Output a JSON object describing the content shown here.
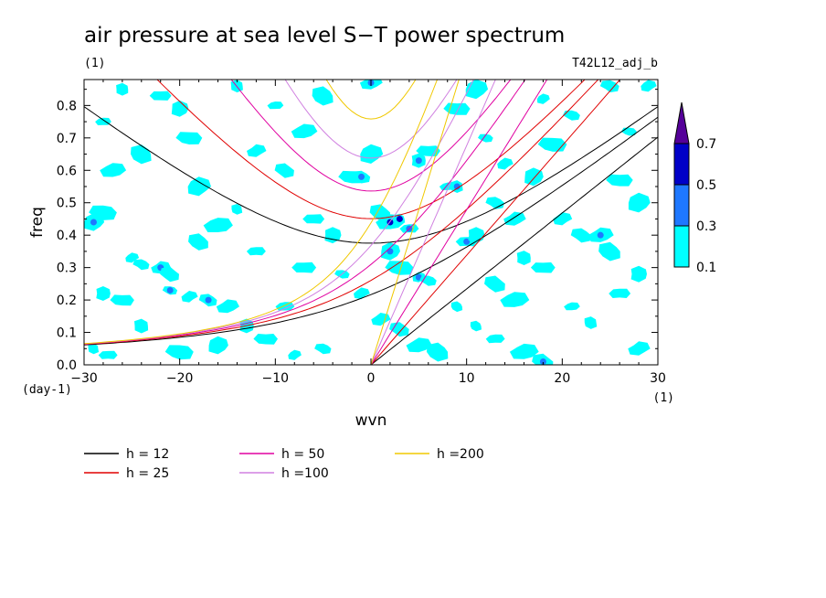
{
  "chart_data": {
    "type": "heatmap",
    "title": "air pressure at sea level S−T power spectrum",
    "subtitle": "(1)",
    "run_label": "T42L12_adj_b",
    "xlabel": "wvn",
    "ylabel": "freq",
    "x_unit": "(1)",
    "y_unit": "(day-1)",
    "xlim": [
      -30,
      30
    ],
    "ylim": [
      0,
      0.88
    ],
    "xticks": [
      -30,
      -20,
      -10,
      0,
      10,
      20,
      30
    ],
    "xtick_labels": [
      "−30",
      "−20",
      "−10",
      "0",
      "10",
      "20",
      "30"
    ],
    "yticks": [
      0,
      0.1,
      0.2,
      0.3,
      0.4,
      0.5,
      0.6,
      0.7,
      0.8
    ],
    "ytick_labels": [
      "0.0",
      "0.1",
      "0.2",
      "0.3",
      "0.4",
      "0.5",
      "0.6",
      "0.7",
      "0.8"
    ],
    "colorbar": {
      "levels": [
        0.1,
        0.3,
        0.5,
        0.7
      ],
      "labels": [
        "0.1",
        "0.3",
        "0.5",
        "0.7"
      ],
      "colors": [
        "#00ffff",
        "#1f78ff",
        "#0000c8",
        "#550099"
      ]
    },
    "patches": [
      {
        "x": -29,
        "y": 0.05,
        "level": 1
      },
      {
        "x": -27.5,
        "y": 0.03,
        "level": 1
      },
      {
        "x": -28,
        "y": 0.22,
        "level": 1
      },
      {
        "x": -26,
        "y": 0.2,
        "level": 1
      },
      {
        "x": -29,
        "y": 0.44,
        "level": 2
      },
      {
        "x": -28,
        "y": 0.47,
        "level": 1
      },
      {
        "x": -25,
        "y": 0.33,
        "level": 1
      },
      {
        "x": -24,
        "y": 0.31,
        "level": 1
      },
      {
        "x": -22,
        "y": 0.3,
        "level": 2
      },
      {
        "x": -21,
        "y": 0.28,
        "level": 1
      },
      {
        "x": -27,
        "y": 0.6,
        "level": 1
      },
      {
        "x": -24,
        "y": 0.65,
        "level": 1
      },
      {
        "x": -28,
        "y": 0.75,
        "level": 1
      },
      {
        "x": -26,
        "y": 0.85,
        "level": 1
      },
      {
        "x": -22,
        "y": 0.83,
        "level": 1
      },
      {
        "x": -20,
        "y": 0.79,
        "level": 1
      },
      {
        "x": -19,
        "y": 0.7,
        "level": 1
      },
      {
        "x": -18,
        "y": 0.55,
        "level": 1
      },
      {
        "x": -21,
        "y": 0.23,
        "level": 2
      },
      {
        "x": -19,
        "y": 0.21,
        "level": 1
      },
      {
        "x": -17,
        "y": 0.2,
        "level": 2
      },
      {
        "x": -15,
        "y": 0.18,
        "level": 1
      },
      {
        "x": -18,
        "y": 0.38,
        "level": 1
      },
      {
        "x": -16,
        "y": 0.43,
        "level": 1
      },
      {
        "x": -14,
        "y": 0.48,
        "level": 1
      },
      {
        "x": -12,
        "y": 0.35,
        "level": 1
      },
      {
        "x": -13,
        "y": 0.12,
        "level": 1
      },
      {
        "x": -11,
        "y": 0.08,
        "level": 1
      },
      {
        "x": -16,
        "y": 0.06,
        "level": 1
      },
      {
        "x": -20,
        "y": 0.04,
        "level": 1
      },
      {
        "x": -8,
        "y": 0.03,
        "level": 1
      },
      {
        "x": -5,
        "y": 0.05,
        "level": 1
      },
      {
        "x": -12,
        "y": 0.66,
        "level": 1
      },
      {
        "x": -9,
        "y": 0.6,
        "level": 1
      },
      {
        "x": -7,
        "y": 0.72,
        "level": 1
      },
      {
        "x": -5,
        "y": 0.83,
        "level": 1
      },
      {
        "x": -10,
        "y": 0.8,
        "level": 1
      },
      {
        "x": -14,
        "y": 0.86,
        "level": 1
      },
      {
        "x": -6,
        "y": 0.45,
        "level": 1
      },
      {
        "x": -4,
        "y": 0.4,
        "level": 1
      },
      {
        "x": -2,
        "y": 0.58,
        "level": 1
      },
      {
        "x": 0,
        "y": 0.65,
        "level": 1
      },
      {
        "x": -3,
        "y": 0.28,
        "level": 1
      },
      {
        "x": -1,
        "y": 0.22,
        "level": 1
      },
      {
        "x": -1,
        "y": 0.58,
        "level": 2
      },
      {
        "x": 0,
        "y": 0.87,
        "level": 2
      },
      {
        "x": 1,
        "y": 0.47,
        "level": 1
      },
      {
        "x": 2,
        "y": 0.44,
        "level": 3
      },
      {
        "x": 3,
        "y": 0.45,
        "level": 3
      },
      {
        "x": 4,
        "y": 0.42,
        "level": 2
      },
      {
        "x": 5,
        "y": 0.63,
        "level": 2
      },
      {
        "x": 6,
        "y": 0.66,
        "level": 1
      },
      {
        "x": 2,
        "y": 0.35,
        "level": 2
      },
      {
        "x": 3,
        "y": 0.3,
        "level": 1
      },
      {
        "x": 5,
        "y": 0.27,
        "level": 2
      },
      {
        "x": 6,
        "y": 0.26,
        "level": 1
      },
      {
        "x": 1,
        "y": 0.14,
        "level": 1
      },
      {
        "x": 3,
        "y": 0.11,
        "level": 1
      },
      {
        "x": 5,
        "y": 0.06,
        "level": 1
      },
      {
        "x": 7,
        "y": 0.04,
        "level": 1
      },
      {
        "x": 8,
        "y": 0.55,
        "level": 1
      },
      {
        "x": 9,
        "y": 0.55,
        "level": 2
      },
      {
        "x": 10,
        "y": 0.38,
        "level": 2
      },
      {
        "x": 11,
        "y": 0.4,
        "level": 1
      },
      {
        "x": 9,
        "y": 0.79,
        "level": 1
      },
      {
        "x": 11,
        "y": 0.85,
        "level": 1
      },
      {
        "x": 12,
        "y": 0.7,
        "level": 1
      },
      {
        "x": 14,
        "y": 0.62,
        "level": 1
      },
      {
        "x": 13,
        "y": 0.5,
        "level": 1
      },
      {
        "x": 15,
        "y": 0.45,
        "level": 1
      },
      {
        "x": 13,
        "y": 0.25,
        "level": 1
      },
      {
        "x": 15,
        "y": 0.2,
        "level": 1
      },
      {
        "x": 11,
        "y": 0.12,
        "level": 1
      },
      {
        "x": 13,
        "y": 0.08,
        "level": 1
      },
      {
        "x": 16,
        "y": 0.33,
        "level": 1
      },
      {
        "x": 18,
        "y": 0.3,
        "level": 1
      },
      {
        "x": 17,
        "y": 0.58,
        "level": 1
      },
      {
        "x": 19,
        "y": 0.68,
        "level": 1
      },
      {
        "x": 18,
        "y": 0.82,
        "level": 1
      },
      {
        "x": 21,
        "y": 0.77,
        "level": 1
      },
      {
        "x": 20,
        "y": 0.45,
        "level": 1
      },
      {
        "x": 22,
        "y": 0.4,
        "level": 1
      },
      {
        "x": 24,
        "y": 0.4,
        "level": 2
      },
      {
        "x": 25,
        "y": 0.35,
        "level": 1
      },
      {
        "x": 21,
        "y": 0.18,
        "level": 1
      },
      {
        "x": 23,
        "y": 0.13,
        "level": 1
      },
      {
        "x": 26,
        "y": 0.22,
        "level": 1
      },
      {
        "x": 28,
        "y": 0.28,
        "level": 1
      },
      {
        "x": 26,
        "y": 0.57,
        "level": 1
      },
      {
        "x": 28,
        "y": 0.5,
        "level": 1
      },
      {
        "x": 27,
        "y": 0.72,
        "level": 1
      },
      {
        "x": 29,
        "y": 0.86,
        "level": 1
      },
      {
        "x": 25,
        "y": 0.86,
        "level": 1
      },
      {
        "x": 28,
        "y": 0.05,
        "level": 1
      },
      {
        "x": 18,
        "y": 0.01,
        "level": 2
      },
      {
        "x": 16,
        "y": 0.04,
        "level": 1
      },
      {
        "x": 9,
        "y": 0.18,
        "level": 1
      },
      {
        "x": -9,
        "y": 0.18,
        "level": 1
      },
      {
        "x": -24,
        "y": 0.12,
        "level": 1
      },
      {
        "x": -7,
        "y": 0.3,
        "level": 1
      }
    ],
    "series": [
      {
        "name": "h = 12",
        "color": "#000000",
        "h": 12
      },
      {
        "name": "h = 25",
        "color": "#e00000",
        "h": 25
      },
      {
        "name": "h = 50",
        "color": "#e000a0",
        "h": 50
      },
      {
        "name": "h =100",
        "color": "#d080e0",
        "h": 100
      },
      {
        "name": "h =200",
        "color": "#f0c800",
        "h": 200
      }
    ]
  }
}
